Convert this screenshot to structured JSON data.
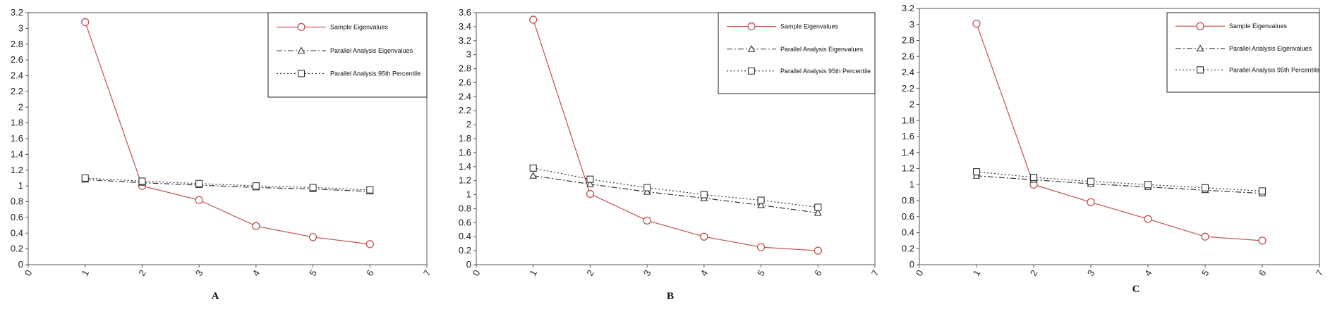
{
  "figure": {
    "legend": {
      "sample": "Sample Eigenvalues",
      "pa_mean": "Parallel Analysis Eigenvalues",
      "pa_95": "Parallel Analysis 95th Percentile"
    },
    "colors": {
      "sample": "#c0504d",
      "parallel": "#333333",
      "axis": "#555555"
    },
    "markers": {
      "sample": "circle",
      "pa_mean": "triangle",
      "pa_95": "square"
    }
  },
  "chart_data": [
    {
      "type": "line",
      "panel_label": "A",
      "x": [
        1,
        2,
        3,
        4,
        5,
        6
      ],
      "xlim": [
        0,
        7
      ],
      "ylim": [
        0,
        3.2
      ],
      "ytick_step": 0.2,
      "grid": false,
      "legend_position": "top-right",
      "series": [
        {
          "name": "Sample Eigenvalues",
          "values": [
            3.08,
            1.0,
            0.82,
            0.49,
            0.35,
            0.26
          ]
        },
        {
          "name": "Parallel Analysis Eigenvalues",
          "values": [
            1.08,
            1.04,
            1.01,
            0.98,
            0.96,
            0.93
          ]
        },
        {
          "name": "Parallel Analysis 95th Percentile",
          "values": [
            1.1,
            1.06,
            1.03,
            1.0,
            0.98,
            0.95
          ]
        }
      ]
    },
    {
      "type": "line",
      "panel_label": "B",
      "x": [
        1,
        2,
        3,
        4,
        5,
        6
      ],
      "xlim": [
        0,
        7
      ],
      "ylim": [
        0,
        3.6
      ],
      "ytick_step": 0.2,
      "grid": false,
      "legend_position": "top-right",
      "series": [
        {
          "name": "Sample Eigenvalues",
          "values": [
            3.5,
            1.01,
            0.63,
            0.4,
            0.25,
            0.2
          ]
        },
        {
          "name": "Parallel Analysis Eigenvalues",
          "values": [
            1.27,
            1.15,
            1.04,
            0.95,
            0.85,
            0.74
          ]
        },
        {
          "name": "Parallel Analysis 95th Percentile",
          "values": [
            1.38,
            1.22,
            1.1,
            1.0,
            0.92,
            0.82
          ]
        }
      ]
    },
    {
      "type": "line",
      "panel_label": "C",
      "x": [
        1,
        2,
        3,
        4,
        5,
        6
      ],
      "xlim": [
        0,
        7
      ],
      "ylim": [
        0,
        3.2
      ],
      "ytick_step": 0.2,
      "grid": false,
      "legend_position": "top-right",
      "series": [
        {
          "name": "Sample Eigenvalues",
          "values": [
            3.01,
            1.0,
            0.78,
            0.57,
            0.35,
            0.3
          ]
        },
        {
          "name": "Parallel Analysis Eigenvalues",
          "values": [
            1.11,
            1.06,
            1.01,
            0.97,
            0.93,
            0.89
          ]
        },
        {
          "name": "Parallel Analysis 95th Percentile",
          "values": [
            1.16,
            1.09,
            1.04,
            1.0,
            0.96,
            0.92
          ]
        }
      ]
    }
  ]
}
